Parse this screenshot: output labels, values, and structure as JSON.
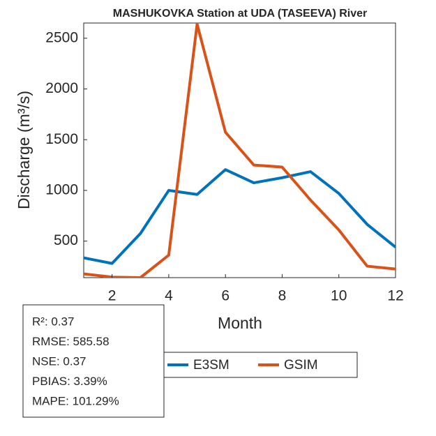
{
  "chart_data": {
    "type": "line",
    "title": "MASHUKOVKA  Station at  UDA (TASEEVA)  River",
    "xlabel": "Month",
    "ylabel": "Discharge (m³/s)",
    "x": [
      1,
      2,
      3,
      4,
      5,
      6,
      7,
      8,
      9,
      10,
      11,
      12
    ],
    "series": [
      {
        "name": "E3SM",
        "color": "#0072BD",
        "values": [
          335,
          280,
          575,
          1000,
          960,
          1205,
          1075,
          1125,
          1185,
          970,
          665,
          440
        ]
      },
      {
        "name": "GSIM",
        "color": "#D95319",
        "values": [
          177,
          145,
          140,
          362,
          2640,
          1573,
          1250,
          1230,
          905,
          610,
          253,
          225
        ]
      }
    ],
    "xlim": [
      1,
      12
    ],
    "xticks": [
      2,
      4,
      6,
      8,
      10,
      12
    ],
    "ylim": [
      140,
      2650
    ],
    "yticks": [
      500,
      1000,
      1500,
      2000,
      2500
    ],
    "annotations": [
      "R²: 0.37",
      "RMSE: 585.58",
      "NSE: 0.37",
      "PBIAS: 3.39%",
      "MAPE: 101.29%"
    ]
  }
}
